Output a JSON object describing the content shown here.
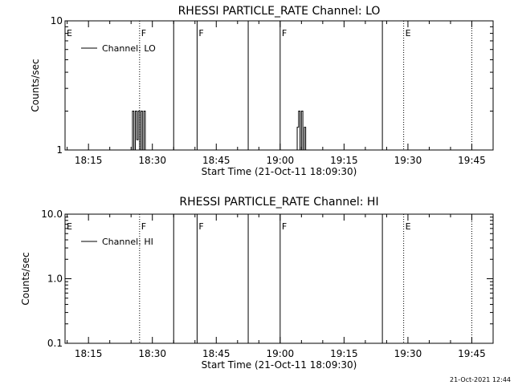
{
  "chart_data": [
    {
      "type": "line",
      "title": "RHESSI PARTICLE_RATE Channel: LO",
      "xlabel": "Start Time (21-Oct-11 18:09:30)",
      "ylabel": "Counts/sec",
      "yscale": "log",
      "ylim": [
        1,
        10
      ],
      "yticks": [
        "1",
        "10"
      ],
      "xlim": [
        "18:09:30",
        "19:50:00"
      ],
      "xticks": [
        "18:15",
        "18:30",
        "18:45",
        "19:00",
        "19:15",
        "19:30",
        "19:45"
      ],
      "legend": {
        "placement": "top-left",
        "entries": [
          "Channel: LO"
        ]
      },
      "grid": false,
      "series": [
        {
          "name": "Channel: LO",
          "points": [
            [
              "18:25:00",
              1.0
            ],
            [
              "18:25:20",
              2.0
            ],
            [
              "18:25:40",
              1.0
            ],
            [
              "18:26:00",
              2.0
            ],
            [
              "18:26:20",
              1.2
            ],
            [
              "18:26:40",
              2.0
            ],
            [
              "18:27:00",
              1.0
            ],
            [
              "18:27:20",
              2.0
            ],
            [
              "18:27:40",
              1.0
            ],
            [
              "18:28:00",
              2.0
            ],
            [
              "18:28:20",
              1.0
            ],
            [
              "19:03:40",
              1.0
            ],
            [
              "19:04:00",
              1.5
            ],
            [
              "19:04:20",
              2.0
            ],
            [
              "19:04:40",
              1.0
            ],
            [
              "19:05:00",
              2.0
            ],
            [
              "19:05:20",
              1.0
            ],
            [
              "19:05:40",
              1.5
            ],
            [
              "19:06:00",
              1.0
            ]
          ]
        }
      ],
      "flag_lines": [
        {
          "time": "18:09:30",
          "style": "dotted",
          "label": "E"
        },
        {
          "time": "18:27:00",
          "style": "dotted",
          "label": "F"
        },
        {
          "time": "18:35:00",
          "style": "solid",
          "label": ""
        },
        {
          "time": "18:40:30",
          "style": "solid",
          "label": "F"
        },
        {
          "time": "18:52:30",
          "style": "solid",
          "label": ""
        },
        {
          "time": "19:00:00",
          "style": "solid",
          "label": "F"
        },
        {
          "time": "19:24:00",
          "style": "solid",
          "label": ""
        },
        {
          "time": "19:29:00",
          "style": "dotted",
          "label": "E"
        },
        {
          "time": "19:45:00",
          "style": "dotted",
          "label": ""
        }
      ]
    },
    {
      "type": "line",
      "title": "RHESSI PARTICLE_RATE Channel: HI",
      "xlabel": "Start Time (21-Oct-11 18:09:30)",
      "ylabel": "Counts/sec",
      "yscale": "log",
      "ylim": [
        0.1,
        10
      ],
      "yticks": [
        "0.1",
        "1.0",
        "10.0"
      ],
      "xlim": [
        "18:09:30",
        "19:50:00"
      ],
      "xticks": [
        "18:15",
        "18:30",
        "18:45",
        "19:00",
        "19:15",
        "19:30",
        "19:45"
      ],
      "legend": {
        "placement": "top-left",
        "entries": [
          "Channel: HI"
        ]
      },
      "grid": false,
      "series": [
        {
          "name": "Channel: HI",
          "points": []
        }
      ],
      "flag_lines": [
        {
          "time": "18:09:30",
          "style": "dotted",
          "label": "E"
        },
        {
          "time": "18:27:00",
          "style": "dotted",
          "label": "F"
        },
        {
          "time": "18:35:00",
          "style": "solid",
          "label": ""
        },
        {
          "time": "18:40:30",
          "style": "solid",
          "label": "F"
        },
        {
          "time": "18:52:30",
          "style": "solid",
          "label": ""
        },
        {
          "time": "19:00:00",
          "style": "solid",
          "label": "F"
        },
        {
          "time": "19:24:00",
          "style": "solid",
          "label": ""
        },
        {
          "time": "19:29:00",
          "style": "dotted",
          "label": "E"
        },
        {
          "time": "19:45:00",
          "style": "dotted",
          "label": ""
        }
      ]
    }
  ],
  "footer": {
    "timestamp": "21-Oct-2021 12:44"
  }
}
